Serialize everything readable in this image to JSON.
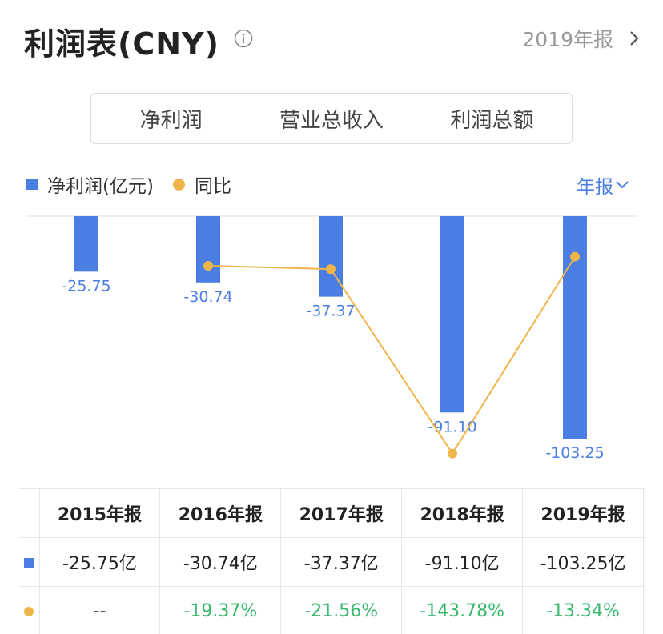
{
  "header": {
    "title": "利润表(CNY)",
    "report_label": "2019年报"
  },
  "tabs": [
    {
      "label": "净利润",
      "active": true
    },
    {
      "label": "营业总收入",
      "active": false
    },
    {
      "label": "利润总额",
      "active": false
    }
  ],
  "legend": {
    "bar_label": "净利润(亿元)",
    "line_label": "同比"
  },
  "period": {
    "label": "年报"
  },
  "colors": {
    "bar": "#4a7ee3",
    "line": "#f0b54a",
    "positive": "#39b76d",
    "tab_active": "#4a7ee3"
  },
  "chart_data": {
    "type": "bar",
    "categories": [
      "2015年报",
      "2016年报",
      "2017年报",
      "2018年报",
      "2019年报"
    ],
    "series": [
      {
        "name": "净利润(亿元)",
        "type": "bar",
        "values": [
          -25.75,
          -30.74,
          -37.37,
          -91.1,
          -103.25
        ],
        "labels": [
          "-25.75",
          "-30.74",
          "-37.37",
          "-91.10",
          "-103.25"
        ]
      },
      {
        "name": "同比",
        "type": "line",
        "values": [
          null,
          -19.37,
          -21.56,
          -143.78,
          -13.34
        ]
      }
    ],
    "ylim": [
      -103.25,
      0
    ],
    "grid": false,
    "legend_position": "top-left"
  },
  "table": {
    "headers": [
      "2015年报",
      "2016年报",
      "2017年报",
      "2018年报",
      "2019年报"
    ],
    "profit_row": [
      "-25.75亿",
      "-30.74亿",
      "-37.37亿",
      "-91.10亿",
      "-103.25亿"
    ],
    "yoy_row": [
      "--",
      "-19.37%",
      "-21.56%",
      "-143.78%",
      "-13.34%"
    ]
  }
}
